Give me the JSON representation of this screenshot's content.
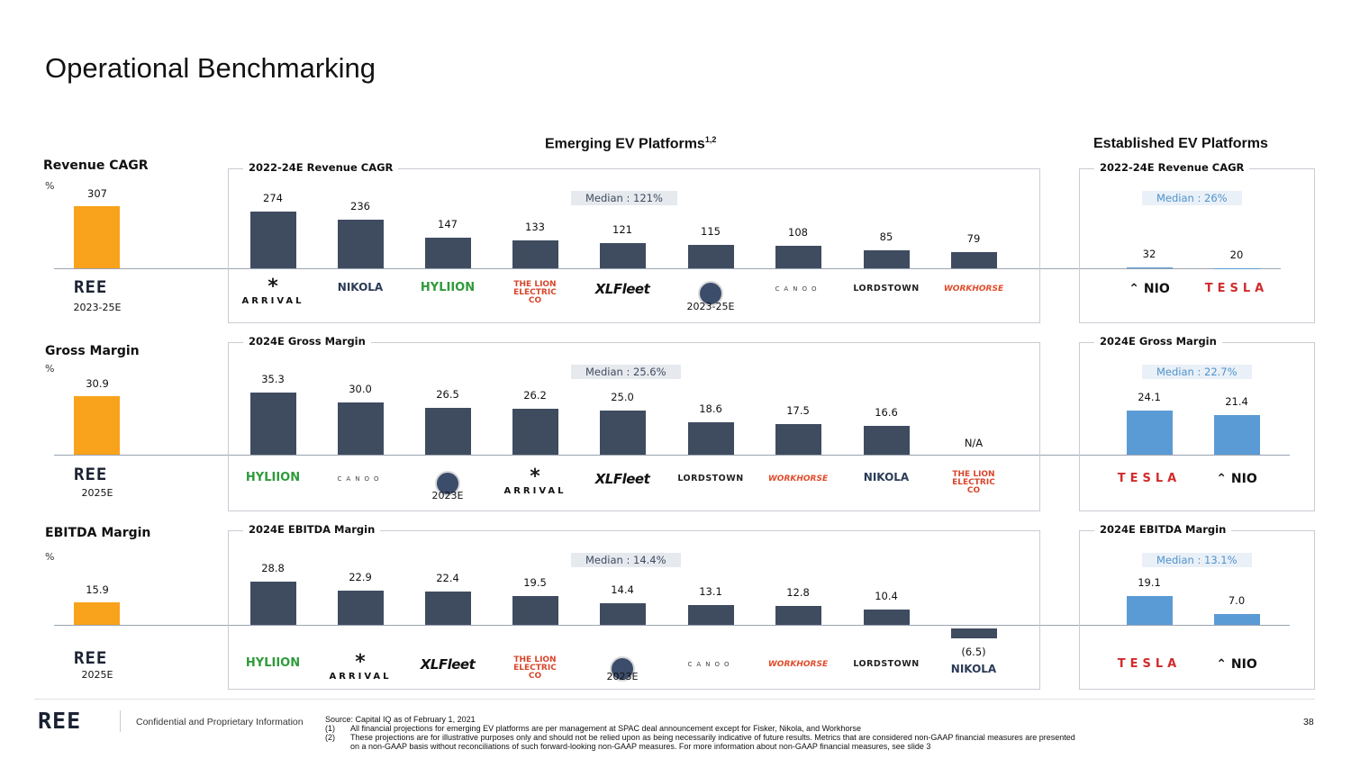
{
  "page_title": "Operational Benchmarking",
  "section_headers": {
    "emerging": "Emerging EV Platforms",
    "emerging_sup": "1,2",
    "established": "Established EV Platforms"
  },
  "colors": {
    "ree": "#F9A21B",
    "emerging": "#3F4C60",
    "established": "#5B9BD5"
  },
  "chart_data": [
    {
      "type": "bar",
      "metric": "Revenue CAGR",
      "unit": "%",
      "ree": {
        "name": "REE",
        "value": 307,
        "label": "307",
        "period": "2023-25E"
      },
      "emerging": {
        "title": "2022-24E Revenue CAGR",
        "median": "Median : 121%",
        "categories": [
          "Arrival",
          "Nikola",
          "Hyliion",
          "The Lion Electric Co",
          "XL Fleet",
          "Fisker",
          "Canoo",
          "Lordstown",
          "Workhorse"
        ],
        "logos": [
          "ARRIVAL",
          "NIKOLA",
          "HYLIION",
          "THE LION ELECTRIC CO",
          "XLFleet",
          "",
          "CANOO",
          "LORDSTOWN",
          "WORKHORSE"
        ],
        "values": [
          274,
          236,
          147,
          133,
          121,
          115,
          108,
          85,
          79
        ],
        "labels": [
          "274",
          "236",
          "147",
          "133",
          "121",
          "115",
          "108",
          "85",
          "79"
        ],
        "notes": [
          "",
          "",
          "",
          "",
          "",
          "2023-25E",
          "",
          "",
          ""
        ]
      },
      "established": {
        "title": "2022-24E Revenue CAGR",
        "median": "Median : 26%",
        "categories": [
          "NIO",
          "Tesla"
        ],
        "logos": [
          "NIO",
          "TESLA"
        ],
        "values": [
          32,
          20
        ],
        "labels": [
          "32",
          "20"
        ]
      }
    },
    {
      "type": "bar",
      "metric": "Gross Margin",
      "unit": "%",
      "ree": {
        "name": "REE",
        "value": 30.9,
        "label": "30.9",
        "period": "2025E"
      },
      "emerging": {
        "title": "2024E Gross Margin",
        "median": "Median : 25.6%",
        "categories": [
          "Hyliion",
          "Canoo",
          "Fisker",
          "Arrival",
          "XL Fleet",
          "Lordstown",
          "Workhorse",
          "Nikola",
          "The Lion Electric Co"
        ],
        "logos": [
          "HYLIION",
          "CANOO",
          "",
          "ARRIVAL",
          "XLFleet",
          "LORDSTOWN",
          "WORKHORSE",
          "NIKOLA",
          "THE LION ELECTRIC CO"
        ],
        "values": [
          35.3,
          30.0,
          26.5,
          26.2,
          25.0,
          18.6,
          17.5,
          16.6,
          null
        ],
        "labels": [
          "35.3",
          "30.0",
          "26.5",
          "26.2",
          "25.0",
          "18.6",
          "17.5",
          "16.6",
          "N/A"
        ],
        "notes": [
          "",
          "",
          "2023E",
          "",
          "",
          "",
          "",
          "",
          ""
        ]
      },
      "established": {
        "title": "2024E Gross Margin",
        "median": "Median : 22.7%",
        "categories": [
          "Tesla",
          "NIO"
        ],
        "logos": [
          "TESLA",
          "NIO"
        ],
        "values": [
          24.1,
          21.4
        ],
        "labels": [
          "24.1",
          "21.4"
        ]
      }
    },
    {
      "type": "bar",
      "metric": "EBITDA Margin",
      "unit": "%",
      "ree": {
        "name": "REE",
        "value": 15.9,
        "label": "15.9",
        "period": "2025E"
      },
      "emerging": {
        "title": "2024E EBITDA Margin",
        "median": "Median : 14.4%",
        "categories": [
          "Hyliion",
          "Arrival",
          "XL Fleet",
          "The Lion Electric Co",
          "Fisker",
          "Canoo",
          "Workhorse",
          "Lordstown",
          "Nikola"
        ],
        "logos": [
          "HYLIION",
          "ARRIVAL",
          "XLFleet",
          "THE LION ELECTRIC CO",
          "",
          "CANOO",
          "WORKHORSE",
          "LORDSTOWN",
          "NIKOLA"
        ],
        "values": [
          28.8,
          22.9,
          22.4,
          19.5,
          14.4,
          13.1,
          12.8,
          10.4,
          -6.5
        ],
        "labels": [
          "28.8",
          "22.9",
          "22.4",
          "19.5",
          "14.4",
          "13.1",
          "12.8",
          "10.4",
          "(6.5)"
        ],
        "notes": [
          "",
          "",
          "",
          "",
          "2023E",
          "",
          "",
          "",
          ""
        ]
      },
      "established": {
        "title": "2024E EBITDA Margin",
        "median": "Median : 13.1%",
        "categories": [
          "Tesla",
          "NIO"
        ],
        "logos": [
          "TESLA",
          "NIO"
        ],
        "values": [
          19.1,
          7.0
        ],
        "labels": [
          "19.1",
          "7.0"
        ]
      }
    }
  ],
  "footer": {
    "logo": "REE",
    "confidential": "Confidential and Proprietary Information",
    "source": "Source: Capital IQ as of February 1, 2021",
    "notes": [
      {
        "num": "(1)",
        "text": "All financial projections for emerging EV platforms are per management at SPAC deal announcement except for Fisker, Nikola, and Workhorse"
      },
      {
        "num": "(2)",
        "text": "These projections are for illustrative purposes only and should not be relied upon as being necessarily indicative of future results. Metrics that are considered non-GAAP financial measures are presented on a non-GAAP basis without reconciliations of such forward-looking non-GAAP measures. For more information about non-GAAP financial measures, see slide 3"
      }
    ],
    "page_number": "38"
  }
}
